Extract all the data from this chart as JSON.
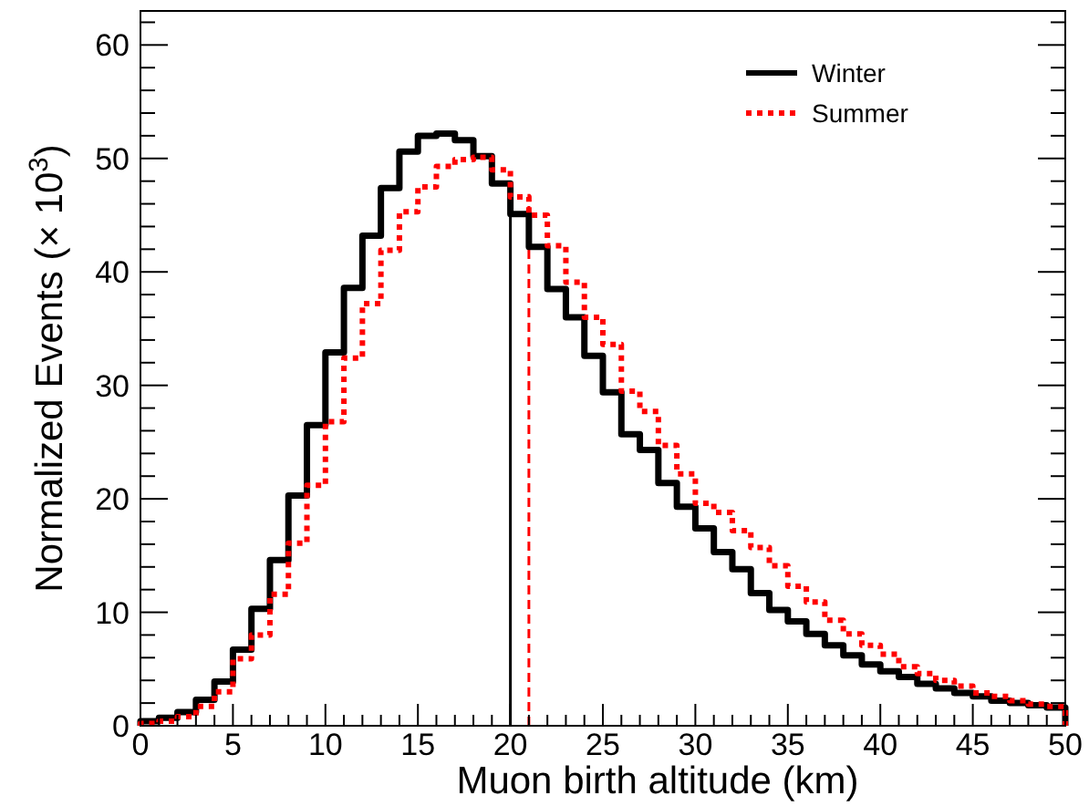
{
  "chart_data": {
    "type": "histogram",
    "xlabel": "Muon birth altitude (km)",
    "ylabel": "Normalized Events (× 10$^{3}$)",
    "bins": [
      0,
      1,
      2,
      3,
      4,
      5,
      6,
      7,
      8,
      9,
      10,
      11,
      12,
      13,
      14,
      15,
      16,
      17,
      18,
      19,
      20,
      21,
      22,
      23,
      24,
      25,
      26,
      27,
      28,
      29,
      30,
      31,
      32,
      33,
      34,
      35,
      36,
      37,
      38,
      39,
      40,
      41,
      42,
      43,
      44,
      45,
      46,
      47,
      48,
      49,
      50
    ],
    "series": [
      {
        "name": "Winter",
        "color": "#000000",
        "line_style": "solid",
        "values": [
          0.4,
          0.7,
          1.2,
          2.3,
          3.9,
          6.7,
          10.3,
          14.6,
          20.3,
          26.5,
          32.9,
          38.6,
          43.2,
          47.4,
          50.6,
          52.0,
          52.2,
          51.6,
          50.2,
          47.8,
          45.1,
          42.2,
          38.5,
          36.0,
          32.6,
          29.4,
          25.7,
          24.3,
          21.4,
          19.3,
          17.4,
          15.3,
          13.8,
          11.7,
          10.2,
          9.2,
          8.1,
          7.1,
          6.2,
          5.4,
          4.8,
          4.3,
          3.7,
          3.3,
          2.9,
          2.6,
          2.2,
          2.0,
          1.8,
          1.6
        ]
      },
      {
        "name": "Summer",
        "color": "#ff0000",
        "line_style": "dotted",
        "values": [
          0.2,
          0.4,
          0.8,
          1.7,
          3.0,
          5.9,
          8.0,
          11.6,
          16.1,
          21.2,
          26.8,
          32.4,
          37.2,
          41.9,
          45.3,
          47.5,
          49.3,
          49.9,
          50.1,
          49.0,
          46.6,
          45.0,
          42.3,
          39.1,
          36.0,
          33.6,
          29.5,
          27.7,
          24.7,
          22.2,
          19.6,
          18.8,
          17.2,
          15.7,
          14.1,
          12.3,
          10.9,
          9.3,
          8.1,
          7.1,
          6.3,
          5.2,
          4.6,
          4.0,
          3.5,
          2.9,
          2.6,
          2.2,
          1.9,
          1.7
        ]
      }
    ],
    "xlim": [
      0,
      50
    ],
    "xticks": [
      0,
      {
        "value": 1,
        "label": null
      },
      {
        "value": 2,
        "label": null
      },
      {
        "value": 3,
        "label": null
      },
      {
        "value": 4,
        "label": null
      },
      5,
      {
        "value": 6,
        "label": null
      },
      {
        "value": 7,
        "label": null
      },
      {
        "value": 8,
        "label": null
      },
      {
        "value": 9,
        "label": null
      },
      10,
      {
        "value": 11,
        "label": null
      },
      {
        "value": 12,
        "label": null
      },
      {
        "value": 13,
        "label": null
      },
      {
        "value": 14,
        "label": null
      },
      15,
      {
        "value": 16,
        "label": null
      },
      {
        "value": 17,
        "label": null
      },
      {
        "value": 18,
        "label": null
      },
      {
        "value": 19,
        "label": null
      },
      20,
      {
        "value": 21,
        "label": null
      },
      {
        "value": 22,
        "label": null
      },
      {
        "value": 23,
        "label": null
      },
      {
        "value": 24,
        "label": null
      },
      25,
      {
        "value": 26,
        "label": null
      },
      {
        "value": 27,
        "label": null
      },
      {
        "value": 28,
        "label": null
      },
      {
        "value": 29,
        "label": null
      },
      30,
      {
        "value": 31,
        "label": null
      },
      {
        "value": 32,
        "label": null
      },
      {
        "value": 33,
        "label": null
      },
      {
        "value": 34,
        "label": null
      },
      35,
      {
        "value": 36,
        "label": null
      },
      {
        "value": 37,
        "label": null
      },
      {
        "value": 38,
        "label": null
      },
      {
        "value": 39,
        "label": null
      },
      40,
      {
        "value": 41,
        "label": null
      },
      {
        "value": 42,
        "label": null
      },
      {
        "value": 43,
        "label": null
      },
      {
        "value": 44,
        "label": null
      },
      45,
      {
        "value": 46,
        "label": null
      },
      {
        "value": 47,
        "label": null
      },
      {
        "value": 48,
        "label": null
      },
      {
        "value": 49,
        "label": null
      },
      50
    ],
    "ylim": [
      0,
      63
    ],
    "yticks": [
      0,
      {
        "value": 2,
        "label": null
      },
      {
        "value": 4,
        "label": null
      },
      {
        "value": 6,
        "label": null
      },
      {
        "value": 8,
        "label": null
      },
      10,
      {
        "value": 12,
        "label": null
      },
      {
        "value": 14,
        "label": null
      },
      {
        "value": 16,
        "label": null
      },
      {
        "value": 18,
        "label": null
      },
      20,
      {
        "value": 22,
        "label": null
      },
      {
        "value": 24,
        "label": null
      },
      {
        "value": 26,
        "label": null
      },
      {
        "value": 28,
        "label": null
      },
      30,
      {
        "value": 32,
        "label": null
      },
      {
        "value": 34,
        "label": null
      },
      {
        "value": 36,
        "label": null
      },
      {
        "value": 38,
        "label": null
      },
      40,
      {
        "value": 42,
        "label": null
      },
      {
        "value": 44,
        "label": null
      },
      {
        "value": 46,
        "label": null
      },
      {
        "value": 48,
        "label": null
      },
      50,
      {
        "value": 52,
        "label": null
      },
      {
        "value": 54,
        "label": null
      },
      {
        "value": 56,
        "label": null
      },
      {
        "value": 58,
        "label": null
      },
      60,
      {
        "value": 62,
        "label": null
      }
    ],
    "ref_lines": [
      {
        "axis": "x",
        "value": 20,
        "color": "#000000",
        "line_style": "solid"
      },
      {
        "axis": "x",
        "value": 21,
        "color": "#ff0000",
        "line_style": "dashed"
      }
    ],
    "legend": "top right",
    "grid": false
  }
}
